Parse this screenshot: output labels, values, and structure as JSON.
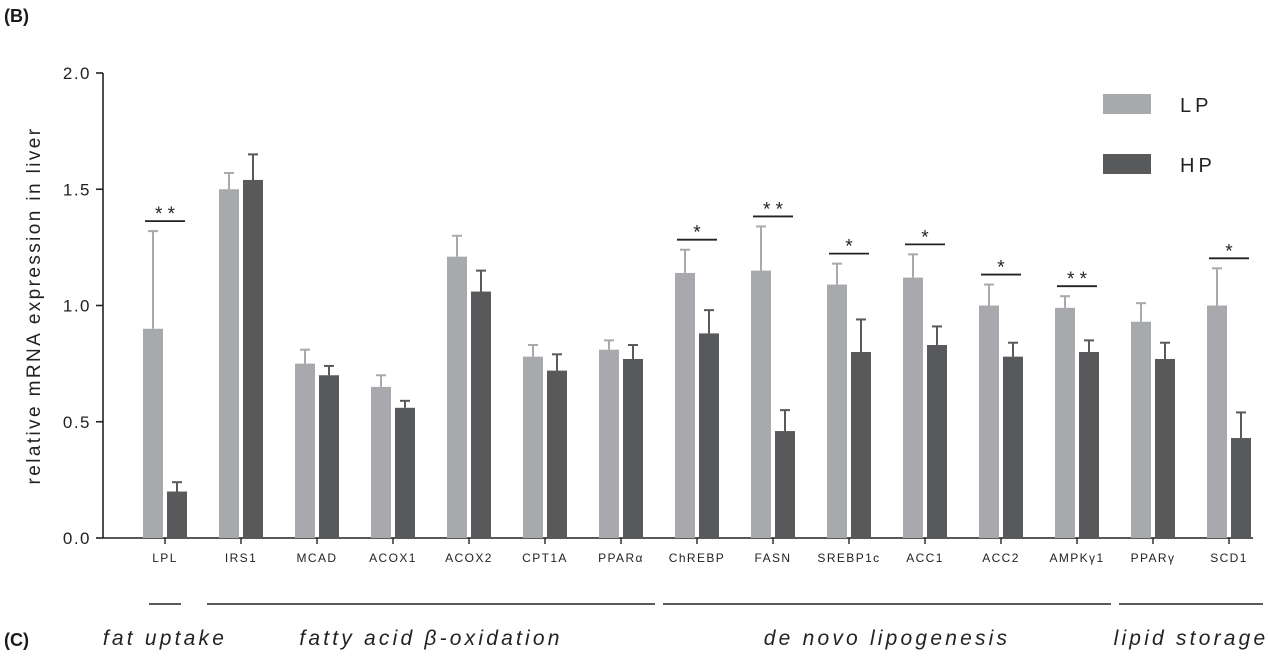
{
  "panel_labels": {
    "b": "(B)",
    "c": "(C)"
  },
  "colors": {
    "LP": "#a7a9ac",
    "HP": "#58595b",
    "axis": "#222222"
  },
  "chart_data": {
    "type": "bar",
    "ylabel": "relative mRNA expression in liver",
    "ylim": [
      0,
      2.0
    ],
    "yticks": [
      "0.0",
      "0.5",
      "1.0",
      "1.5",
      "2.0"
    ],
    "categories": [
      "LPL",
      "IRS1",
      "MCAD",
      "ACOX1",
      "ACOX2",
      "CPT1A",
      "PPARα",
      "ChREBP",
      "FASN",
      "SREBP1c",
      "ACC1",
      "ACC2",
      "AMPKγ1",
      "PPARγ",
      "SCD1"
    ],
    "series": [
      {
        "name": "LP",
        "values": [
          0.9,
          1.5,
          0.75,
          0.65,
          1.21,
          0.78,
          0.81,
          1.14,
          1.15,
          1.09,
          1.12,
          1.0,
          0.99,
          0.93,
          1.0
        ],
        "errors": [
          0.42,
          0.07,
          0.06,
          0.05,
          0.09,
          0.05,
          0.04,
          0.1,
          0.19,
          0.09,
          0.1,
          0.09,
          0.05,
          0.08,
          0.16
        ]
      },
      {
        "name": "HP",
        "values": [
          0.2,
          1.54,
          0.7,
          0.56,
          1.06,
          0.72,
          0.77,
          0.88,
          0.46,
          0.8,
          0.83,
          0.78,
          0.8,
          0.77,
          0.43
        ],
        "errors": [
          0.04,
          0.11,
          0.04,
          0.03,
          0.09,
          0.07,
          0.06,
          0.1,
          0.09,
          0.14,
          0.08,
          0.06,
          0.05,
          0.07,
          0.11
        ]
      }
    ],
    "significance": [
      {
        "category": "LPL",
        "label": "* *"
      },
      {
        "category": "ChREBP",
        "label": "*"
      },
      {
        "category": "FASN",
        "label": "* *"
      },
      {
        "category": "SREBP1c",
        "label": "*"
      },
      {
        "category": "ACC1",
        "label": "*"
      },
      {
        "category": "ACC2",
        "label": "*"
      },
      {
        "category": "AMPKγ1",
        "label": "* *"
      },
      {
        "category": "SCD1",
        "label": "*"
      }
    ],
    "groups": [
      {
        "label": "fat uptake",
        "from": "LPL",
        "to": "LPL"
      },
      {
        "label": "fatty acid β-oxidation",
        "from": "IRS1",
        "to": "PPARα"
      },
      {
        "label": "de novo lipogenesis",
        "from": "ChREBP",
        "to": "AMPKγ1"
      },
      {
        "label": "lipid storage",
        "from": "PPARγ",
        "to": "SCD1"
      }
    ],
    "legend_position": "top-right"
  }
}
